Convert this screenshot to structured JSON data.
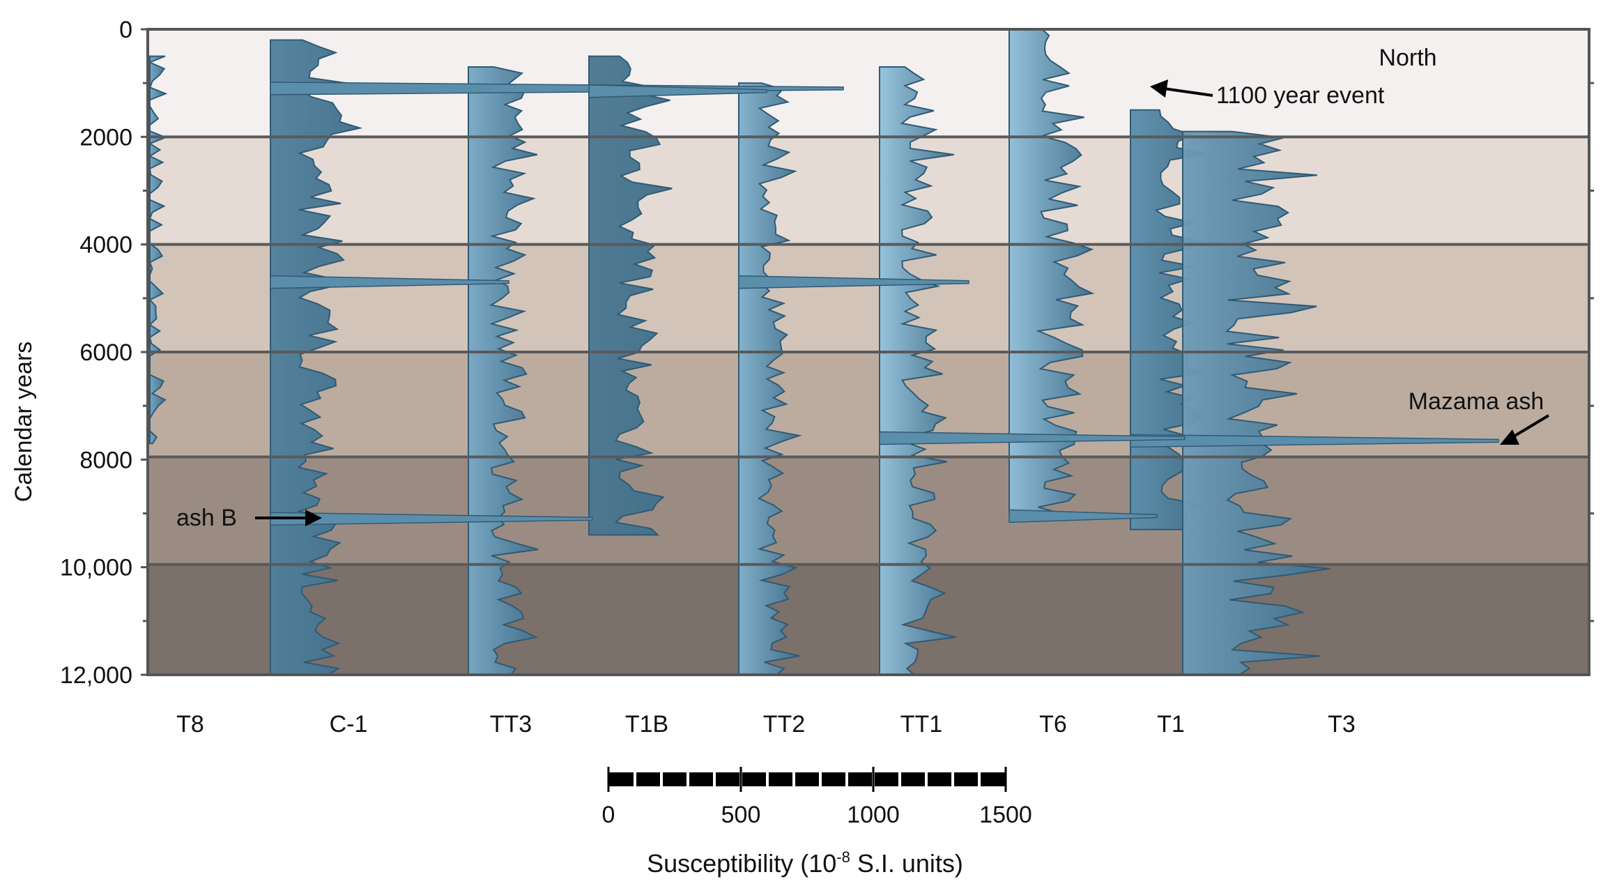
{
  "chart_data": {
    "type": "area",
    "title": "",
    "ylabel": "Calendar years",
    "xlabel": "Susceptibility (10-8 S.I. units)",
    "xlabel_parts": {
      "before": "Susceptibility (10",
      "sup": "-8",
      "after": " S.I. units)"
    },
    "ylim": [
      0,
      12000
    ],
    "y_ticks": [
      {
        "value": 0,
        "label": "0"
      },
      {
        "value": 2000,
        "label": "2000"
      },
      {
        "value": 4000,
        "label": "4000"
      },
      {
        "value": 6000,
        "label": "6000"
      },
      {
        "value": 8000,
        "label": "8000"
      },
      {
        "value": 10000,
        "label": "10,000"
      },
      {
        "value": 12000,
        "label": "12,000"
      }
    ],
    "horizon_lines": [
      2000,
      4000,
      6000,
      7950,
      9950
    ],
    "band_colors": [
      "#f4f0ef",
      "#e6dbd4",
      "#d3c4ba",
      "#bcaca0",
      "#9b8c83",
      "#7c706a"
    ],
    "scale_bar": {
      "min": 0,
      "max": 1500,
      "labels": [
        "0",
        "500",
        "1000",
        "1500"
      ],
      "segments": 15
    },
    "series": [
      {
        "name": "T8",
        "top": 500,
        "bottom": 7700,
        "base": "right",
        "color": "#6fa3c4"
      },
      {
        "name": "C-1",
        "top": 200,
        "bottom": 12000,
        "base": "left",
        "color": "#4f7f9b"
      },
      {
        "name": "TT3",
        "top": 700,
        "bottom": 12000,
        "base": "left",
        "color": "#78a9c6"
      },
      {
        "name": "T1B",
        "top": 500,
        "bottom": 9400,
        "base": "left",
        "color": "#4a7690"
      },
      {
        "name": "TT2",
        "top": 1000,
        "bottom": 12000,
        "base": "left",
        "color": "#80b1cd"
      },
      {
        "name": "TT1",
        "top": 700,
        "bottom": 12000,
        "base": "left",
        "color": "#93c2dc"
      },
      {
        "name": "T6",
        "top": 0,
        "bottom": 9000,
        "base": "left",
        "color": "#8ebfdb"
      },
      {
        "name": "T1",
        "top": 1500,
        "bottom": 9300,
        "base": "left",
        "color": "#5a8eab"
      },
      {
        "name": "T3",
        "top": 1900,
        "bottom": 12000,
        "base": "left",
        "color": "#6d9bb8"
      }
    ],
    "events": [
      {
        "label": "1100 year event",
        "year": 1100
      },
      {
        "label": "Mazama ash",
        "year": 7650
      },
      {
        "label": "ash B",
        "year": 9100
      }
    ],
    "region_label": "North"
  }
}
